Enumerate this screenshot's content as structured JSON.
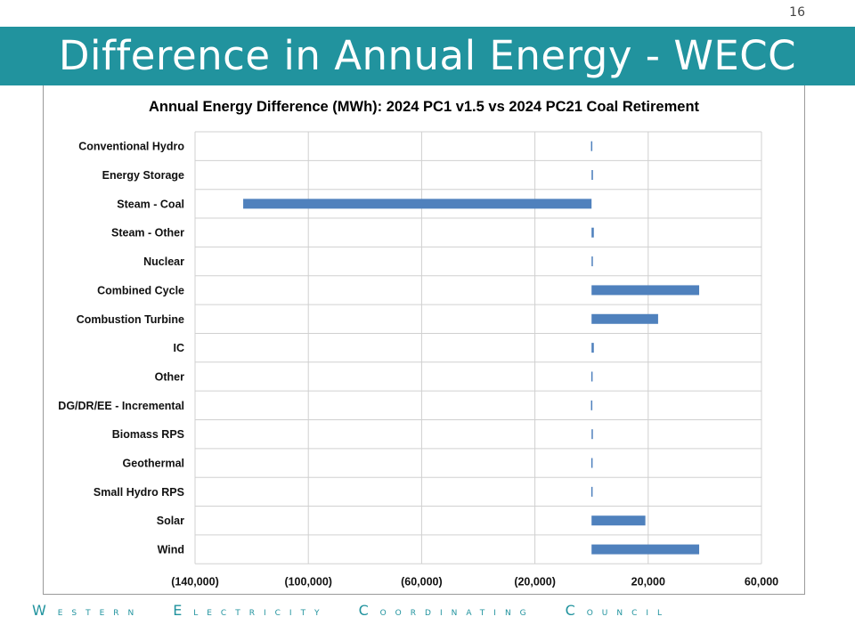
{
  "slide": {
    "page_number": "16",
    "title": "Difference in Annual Energy - WECC",
    "footer_words": [
      "Western",
      "Electricity",
      "Coordinating",
      "Council"
    ]
  },
  "colors": {
    "title_bar": "#21939e",
    "bar": "#4f81bd",
    "grid": "#d0d0d0"
  },
  "chart_data": {
    "type": "bar",
    "orientation": "horizontal",
    "title": "Annual Energy Difference (MWh): 2024 PC1 v1.5 vs 2024 PC21 Coal Retirement",
    "xlim": [
      -140000,
      60000
    ],
    "x_ticks": [
      -140000,
      -100000,
      -60000,
      -20000,
      20000,
      60000
    ],
    "x_tick_labels": [
      "(140,000)",
      "(100,000)",
      "(60,000)",
      "(20,000)",
      "20,000",
      "60,000"
    ],
    "grid": true,
    "categories": [
      "Conventional Hydro",
      "Energy Storage",
      "Steam - Coal",
      "Steam - Other",
      "Nuclear",
      "Combined Cycle",
      "Combustion Turbine",
      "IC",
      "Other",
      "DG/DR/EE - Incremental",
      "Biomass RPS",
      "Geothermal",
      "Small Hydro RPS",
      "Solar",
      "Wind"
    ],
    "values": [
      -200,
      500,
      -123000,
      800,
      300,
      38000,
      23500,
      800,
      -100,
      -200,
      300,
      -100,
      -100,
      19000,
      38000
    ]
  }
}
